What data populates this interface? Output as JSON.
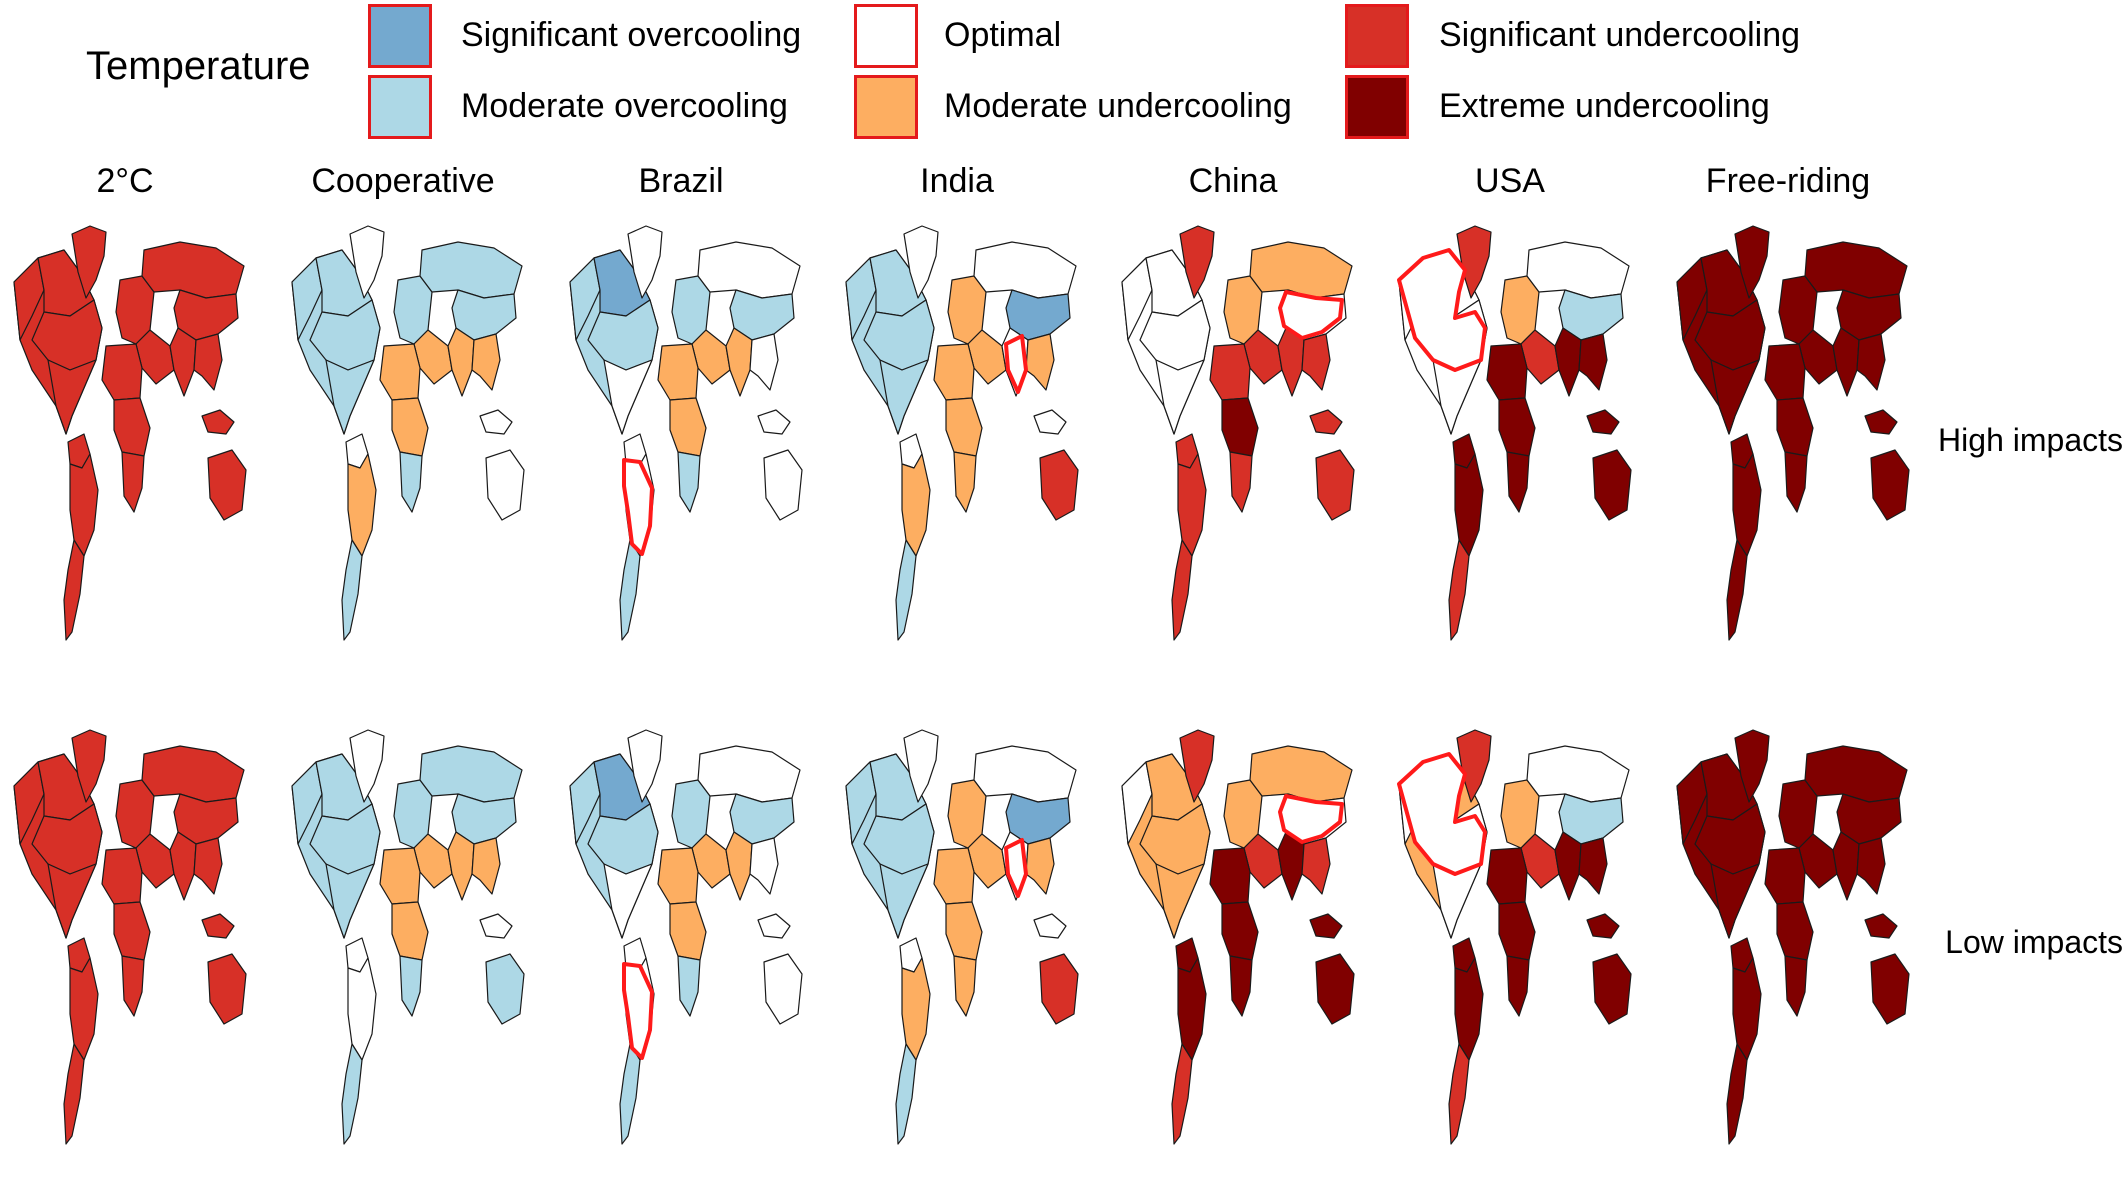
{
  "legend": {
    "title": "Temperature",
    "items": [
      {
        "key": "sig_over",
        "label": "Significant overcooling",
        "color": "#74a9cf"
      },
      {
        "key": "mod_over",
        "label": "Moderate overcooling",
        "color": "#add8e6"
      },
      {
        "key": "optimal",
        "label": "Optimal",
        "color": "#ffffff"
      },
      {
        "key": "mod_under",
        "label": "Moderate undercooling",
        "color": "#fdae61"
      },
      {
        "key": "sig_under",
        "label": "Significant undercooling",
        "color": "#d73027"
      },
      {
        "key": "ext_under",
        "label": "Extreme undercooling",
        "color": "#800000"
      }
    ]
  },
  "columns": [
    "2°C",
    "Cooperative",
    "Brazil",
    "India",
    "China",
    "USA",
    "Free-riding"
  ],
  "rows": [
    "High impacts",
    "Low impacts"
  ],
  "highlight_color": "#ff1a1a",
  "maps": [
    [
      {
        "na": "sig_under",
        "greenland": "sig_under",
        "canada": "sig_under",
        "alaska": "sig_under",
        "us": "sig_under",
        "mexico": "sig_under",
        "sa_north": "sig_under",
        "brazil": "sig_under",
        "sa_south": "sig_under",
        "europe": "sig_under",
        "russia": "sig_under",
        "mideast": "sig_under",
        "africa_n": "sig_under",
        "africa_c": "sig_under",
        "africa_s": "sig_under",
        "china": "sig_under",
        "india": "sig_under",
        "seasia": "sig_under",
        "indonesia": "sig_under",
        "australia": "sig_under",
        "highlight": "none"
      },
      {
        "na": "mod_over",
        "greenland": "optimal",
        "canada": "mod_over",
        "alaska": "mod_over",
        "us": "mod_over",
        "mexico": "mod_over",
        "sa_north": "optimal",
        "brazil": "mod_under",
        "sa_south": "mod_over",
        "europe": "mod_over",
        "russia": "mod_over",
        "mideast": "mod_under",
        "africa_n": "mod_under",
        "africa_c": "mod_under",
        "africa_s": "mod_over",
        "china": "mod_over",
        "india": "mod_under",
        "seasia": "mod_under",
        "indonesia": "optimal",
        "australia": "optimal",
        "highlight": "none"
      },
      {
        "na": "mod_over",
        "greenland": "optimal",
        "canada": "sig_over",
        "alaska": "mod_over",
        "us": "mod_over",
        "mexico": "optimal",
        "sa_north": "optimal",
        "brazil": "optimal",
        "sa_south": "mod_over",
        "europe": "mod_over",
        "russia": "optimal",
        "mideast": "mod_under",
        "africa_n": "mod_under",
        "africa_c": "mod_under",
        "africa_s": "mod_over",
        "china": "mod_over",
        "india": "mod_under",
        "seasia": "optimal",
        "indonesia": "optimal",
        "australia": "optimal",
        "highlight": "brazil"
      },
      {
        "na": "mod_over",
        "greenland": "optimal",
        "canada": "mod_over",
        "alaska": "mod_over",
        "us": "mod_over",
        "mexico": "mod_over",
        "sa_north": "optimal",
        "brazil": "mod_under",
        "sa_south": "mod_over",
        "europe": "mod_under",
        "russia": "optimal",
        "mideast": "mod_under",
        "africa_n": "mod_under",
        "africa_c": "mod_under",
        "africa_s": "mod_under",
        "china": "sig_over",
        "india": "optimal",
        "seasia": "mod_under",
        "indonesia": "optimal",
        "australia": "sig_under",
        "highlight": "india"
      },
      {
        "na": "optimal",
        "greenland": "sig_under",
        "canada": "optimal",
        "alaska": "optimal",
        "us": "optimal",
        "mexico": "optimal",
        "sa_north": "sig_under",
        "brazil": "sig_under",
        "sa_south": "sig_under",
        "europe": "mod_under",
        "russia": "mod_under",
        "mideast": "sig_under",
        "africa_n": "sig_under",
        "africa_c": "ext_under",
        "africa_s": "sig_under",
        "china": "optimal",
        "india": "sig_under",
        "seasia": "sig_under",
        "indonesia": "sig_under",
        "australia": "sig_under",
        "highlight": "china"
      },
      {
        "na": "optimal",
        "greenland": "sig_under",
        "canada": "optimal",
        "alaska": "optimal",
        "us": "optimal",
        "mexico": "optimal",
        "sa_north": "ext_under",
        "brazil": "ext_under",
        "sa_south": "sig_under",
        "europe": "mod_under",
        "russia": "optimal",
        "mideast": "sig_under",
        "africa_n": "ext_under",
        "africa_c": "ext_under",
        "africa_s": "ext_under",
        "china": "mod_over",
        "india": "ext_under",
        "seasia": "ext_under",
        "indonesia": "ext_under",
        "australia": "ext_under",
        "highlight": "usa"
      },
      {
        "na": "ext_under",
        "greenland": "ext_under",
        "canada": "ext_under",
        "alaska": "ext_under",
        "us": "ext_under",
        "mexico": "ext_under",
        "sa_north": "ext_under",
        "brazil": "ext_under",
        "sa_south": "ext_under",
        "europe": "ext_under",
        "russia": "ext_under",
        "mideast": "ext_under",
        "africa_n": "ext_under",
        "africa_c": "ext_under",
        "africa_s": "ext_under",
        "china": "ext_under",
        "india": "ext_under",
        "seasia": "ext_under",
        "indonesia": "ext_under",
        "australia": "ext_under",
        "highlight": "none"
      }
    ],
    [
      {
        "na": "sig_under",
        "greenland": "sig_under",
        "canada": "sig_under",
        "alaska": "sig_under",
        "us": "sig_under",
        "mexico": "sig_under",
        "sa_north": "sig_under",
        "brazil": "sig_under",
        "sa_south": "sig_under",
        "europe": "sig_under",
        "russia": "sig_under",
        "mideast": "sig_under",
        "africa_n": "sig_under",
        "africa_c": "sig_under",
        "africa_s": "sig_under",
        "china": "sig_under",
        "india": "sig_under",
        "seasia": "sig_under",
        "indonesia": "sig_under",
        "australia": "sig_under",
        "highlight": "none"
      },
      {
        "na": "mod_over",
        "greenland": "optimal",
        "canada": "mod_over",
        "alaska": "mod_over",
        "us": "mod_over",
        "mexico": "mod_over",
        "sa_north": "optimal",
        "brazil": "optimal",
        "sa_south": "mod_over",
        "europe": "mod_over",
        "russia": "mod_over",
        "mideast": "mod_under",
        "africa_n": "mod_under",
        "africa_c": "mod_under",
        "africa_s": "mod_over",
        "china": "mod_over",
        "india": "mod_under",
        "seasia": "mod_under",
        "indonesia": "optimal",
        "australia": "mod_over",
        "highlight": "none"
      },
      {
        "na": "mod_over",
        "greenland": "optimal",
        "canada": "sig_over",
        "alaska": "mod_over",
        "us": "mod_over",
        "mexico": "optimal",
        "sa_north": "optimal",
        "brazil": "optimal",
        "sa_south": "mod_over",
        "europe": "mod_over",
        "russia": "optimal",
        "mideast": "mod_under",
        "africa_n": "mod_under",
        "africa_c": "mod_under",
        "africa_s": "mod_over",
        "china": "mod_over",
        "india": "mod_under",
        "seasia": "optimal",
        "indonesia": "optimal",
        "australia": "optimal",
        "highlight": "brazil"
      },
      {
        "na": "mod_over",
        "greenland": "optimal",
        "canada": "mod_over",
        "alaska": "mod_over",
        "us": "mod_over",
        "mexico": "mod_over",
        "sa_north": "optimal",
        "brazil": "mod_under",
        "sa_south": "mod_over",
        "europe": "mod_under",
        "russia": "optimal",
        "mideast": "mod_under",
        "africa_n": "mod_under",
        "africa_c": "mod_under",
        "africa_s": "mod_under",
        "china": "sig_over",
        "india": "optimal",
        "seasia": "mod_under",
        "indonesia": "optimal",
        "australia": "sig_under",
        "highlight": "india"
      },
      {
        "na": "mod_under",
        "greenland": "sig_under",
        "canada": "mod_under",
        "alaska": "optimal",
        "us": "mod_under",
        "mexico": "mod_under",
        "sa_north": "ext_under",
        "brazil": "ext_under",
        "sa_south": "sig_under",
        "europe": "mod_under",
        "russia": "mod_under",
        "mideast": "sig_under",
        "africa_n": "ext_under",
        "africa_c": "ext_under",
        "africa_s": "ext_under",
        "china": "optimal",
        "india": "ext_under",
        "seasia": "sig_under",
        "indonesia": "ext_under",
        "australia": "ext_under",
        "highlight": "china"
      },
      {
        "na": "mod_under",
        "greenland": "sig_under",
        "canada": "mod_under",
        "alaska": "optimal",
        "us": "optimal",
        "mexico": "optimal",
        "sa_north": "ext_under",
        "brazil": "ext_under",
        "sa_south": "sig_under",
        "europe": "mod_under",
        "russia": "optimal",
        "mideast": "sig_under",
        "africa_n": "ext_under",
        "africa_c": "ext_under",
        "africa_s": "ext_under",
        "china": "mod_over",
        "india": "ext_under",
        "seasia": "ext_under",
        "indonesia": "ext_under",
        "australia": "ext_under",
        "highlight": "usa"
      },
      {
        "na": "ext_under",
        "greenland": "ext_under",
        "canada": "ext_under",
        "alaska": "ext_under",
        "us": "ext_under",
        "mexico": "ext_under",
        "sa_north": "ext_under",
        "brazil": "ext_under",
        "sa_south": "ext_under",
        "europe": "ext_under",
        "russia": "ext_under",
        "mideast": "ext_under",
        "africa_n": "ext_under",
        "africa_c": "ext_under",
        "africa_s": "ext_under",
        "china": "ext_under",
        "india": "ext_under",
        "seasia": "ext_under",
        "indonesia": "ext_under",
        "australia": "ext_under",
        "highlight": "none"
      }
    ]
  ]
}
